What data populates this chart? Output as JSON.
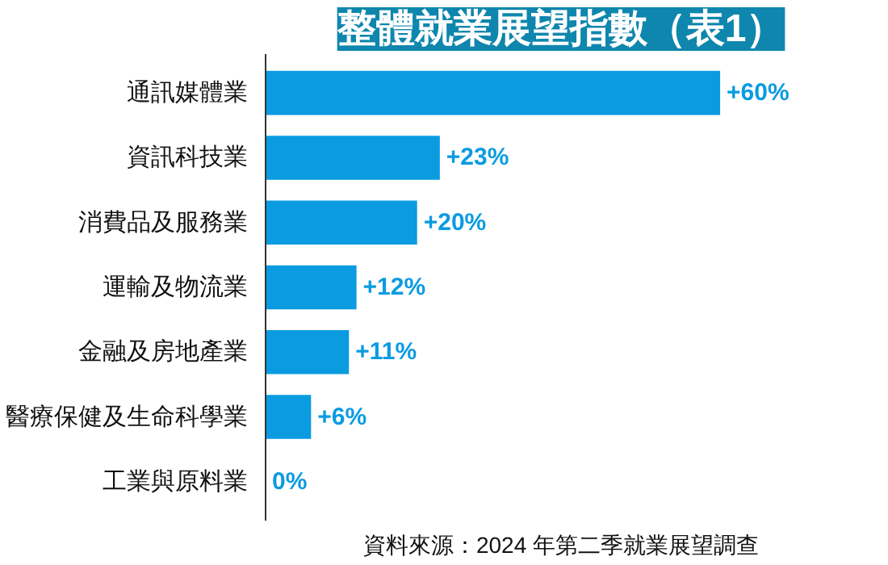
{
  "chart_data": {
    "type": "bar",
    "orientation": "horizontal",
    "title": "整體就業展望指數（表1）",
    "categories": [
      "通訊媒體業",
      "資訊科技業",
      "消費品及服務業",
      "運輸及物流業",
      "金融及房地產業",
      "醫療保健及生命科學業",
      "工業與原料業"
    ],
    "values": [
      60,
      23,
      20,
      12,
      11,
      6,
      0
    ],
    "value_labels": [
      "+60%",
      "+23%",
      "+20%",
      "+12%",
      "+11%",
      "+6%",
      "0%"
    ],
    "color": "#0a9be0",
    "annotations": [
      "資料來源：2024 年第二季就業展望調查"
    ],
    "grid": false
  }
}
